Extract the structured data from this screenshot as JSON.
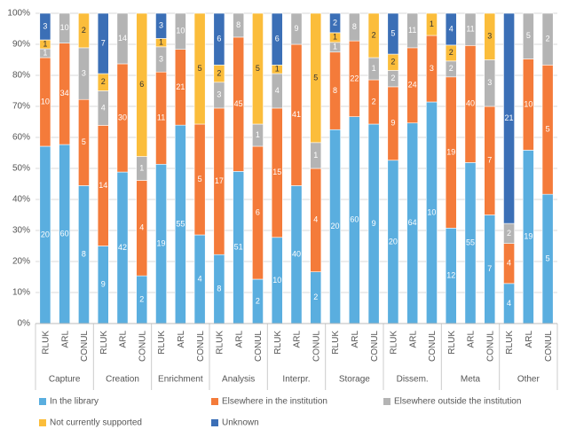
{
  "chart_data": {
    "type": "bar",
    "stacked": true,
    "normalize": true,
    "groups": [
      "Capture",
      "Creation",
      "Enrichment",
      "Analysis",
      "Interpr.",
      "Storage",
      "Dissem.",
      "Meta",
      "Other"
    ],
    "categories": [
      "RLUK",
      "ARL",
      "CONUL",
      "RLUK",
      "ARL",
      "CONUL",
      "RLUK",
      "ARL",
      "CONUL",
      "RLUK",
      "ARL",
      "CONUL",
      "RLUK",
      "ARL",
      "CONUL",
      "RLUK",
      "ARL",
      "CONUL",
      "RLUK",
      "ARL",
      "CONUL",
      "RLUK",
      "ARL",
      "CONUL",
      "RLUK",
      "ARL",
      "CONUL"
    ],
    "series": [
      {
        "name": "In the library",
        "color": "#5aaedf",
        "values": [
          20,
          60,
          8,
          9,
          42,
          2,
          19,
          55,
          4,
          8,
          51,
          2,
          10,
          40,
          2,
          20,
          60,
          9,
          20,
          64,
          10,
          12,
          55,
          7,
          4,
          19,
          5
        ]
      },
      {
        "name": "Elsewhere in the institution",
        "color": "#f47b3a",
        "values": [
          10,
          34,
          5,
          14,
          30,
          4,
          11,
          21,
          5,
          17,
          45,
          6,
          15,
          41,
          4,
          8,
          22,
          2,
          9,
          24,
          3,
          19,
          40,
          7,
          4,
          10,
          5
        ]
      },
      {
        "name": "Elsewhere outside the institution",
        "color": "#b4b4b4",
        "values": [
          1,
          10,
          3,
          4,
          14,
          1,
          3,
          10,
          0,
          3,
          8,
          1,
          4,
          9,
          1,
          1,
          8,
          1,
          2,
          11,
          0,
          2,
          11,
          3,
          2,
          5,
          2
        ]
      },
      {
        "name": "Not currently supported",
        "color": "#fbbd3b",
        "values": [
          1,
          0,
          2,
          2,
          0,
          6,
          1,
          0,
          5,
          2,
          0,
          5,
          1,
          0,
          5,
          1,
          0,
          2,
          2,
          0,
          1,
          2,
          0,
          3,
          0,
          0,
          0
        ]
      },
      {
        "name": "Unknown",
        "color": "#3b6fb6",
        "values": [
          3,
          0,
          0,
          7,
          0,
          0,
          3,
          0,
          0,
          6,
          0,
          0,
          6,
          0,
          0,
          2,
          0,
          0,
          5,
          0,
          0,
          4,
          0,
          0,
          21,
          0,
          0
        ]
      }
    ],
    "ylim": [
      0,
      100
    ],
    "yticks": [
      {
        "value": 0,
        "label": "0%"
      },
      {
        "value": 10,
        "label": "10%"
      },
      {
        "value": 20,
        "label": "20%"
      },
      {
        "value": 30,
        "label": "30%"
      },
      {
        "value": 40,
        "label": "40%"
      },
      {
        "value": 50,
        "label": "50%"
      },
      {
        "value": 60,
        "label": "60%"
      },
      {
        "value": 70,
        "label": "70%"
      },
      {
        "value": 80,
        "label": "80%"
      },
      {
        "value": 90,
        "label": "90%"
      },
      {
        "value": 100,
        "label": "100%"
      }
    ],
    "grid": true
  }
}
